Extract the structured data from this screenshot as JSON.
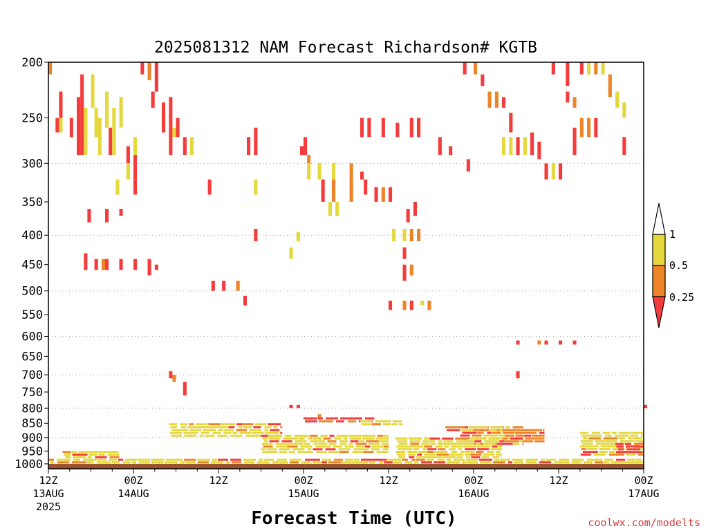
{
  "chart_data": {
    "type": "heatmap",
    "title": "2025081312 NAM Forecast Richardson# KGTB",
    "xlabel": "Forecast Time (UTC)",
    "ylabel": "",
    "credit": "coolwx.com/modelts",
    "y_scale": "log-pressure",
    "y_unit": "hPa",
    "ylim": [
      1020,
      200
    ],
    "y_ticks": [
      200,
      250,
      300,
      350,
      400,
      450,
      500,
      550,
      600,
      650,
      700,
      750,
      800,
      850,
      900,
      950,
      1000
    ],
    "y_gridlines": [
      300,
      400,
      500,
      600,
      700,
      800,
      900,
      1000
    ],
    "x_range_hours": [
      0,
      84
    ],
    "x_ticks": [
      {
        "hour": 0,
        "label": "12Z",
        "date": "13AUG",
        "year": "2025"
      },
      {
        "hour": 12,
        "label": "00Z",
        "date": "14AUG",
        "year": ""
      },
      {
        "hour": 24,
        "label": "12Z",
        "date": "",
        "year": ""
      },
      {
        "hour": 36,
        "label": "00Z",
        "date": "15AUG",
        "year": ""
      },
      {
        "hour": 48,
        "label": "12Z",
        "date": "",
        "year": ""
      },
      {
        "hour": 60,
        "label": "00Z",
        "date": "16AUG",
        "year": ""
      },
      {
        "hour": 72,
        "label": "12Z",
        "date": "",
        "year": ""
      },
      {
        "hour": 84,
        "label": "00Z",
        "date": "17AUG",
        "year": ""
      }
    ],
    "legend": {
      "placement": "right",
      "labels": [
        "1",
        "0.5",
        "0.25"
      ],
      "bins": [
        {
          "range": "0.5 - 1",
          "color": "#e4d83c"
        },
        {
          "range": "0.25 - 0.5",
          "color": "#ee8428"
        },
        {
          "range": "< 0.25",
          "color": "#f43c3c"
        }
      ],
      "above_color": "#ffffff"
    },
    "ground": {
      "from_p": 1000,
      "color": "#9c522c"
    },
    "cells": [
      [
        0,
        200,
        210,
        2
      ],
      [
        1.5,
        225,
        265,
        1
      ],
      [
        1,
        250,
        265,
        1
      ],
      [
        1.5,
        250,
        265,
        3
      ],
      [
        3,
        250,
        270,
        1
      ],
      [
        4.5,
        210,
        290,
        1
      ],
      [
        4,
        230,
        290,
        1
      ],
      [
        5,
        240,
        270,
        3
      ],
      [
        6,
        210,
        240,
        3
      ],
      [
        5,
        270,
        290,
        3
      ],
      [
        6.5,
        240,
        270,
        3
      ],
      [
        7,
        250,
        290,
        3
      ],
      [
        8,
        225,
        260,
        3
      ],
      [
        8.5,
        260,
        290,
        1
      ],
      [
        9,
        240,
        270,
        3
      ],
      [
        9,
        260,
        290,
        3
      ],
      [
        10,
        230,
        260,
        3
      ],
      [
        11,
        280,
        300,
        1
      ],
      [
        11,
        300,
        320,
        3
      ],
      [
        12,
        280,
        320,
        1
      ],
      [
        12,
        270,
        290,
        3
      ],
      [
        13,
        200,
        210,
        1
      ],
      [
        14,
        200,
        215,
        2
      ],
      [
        15,
        200,
        225,
        1
      ],
      [
        14.5,
        225,
        240,
        1
      ],
      [
        16,
        235,
        265,
        1
      ],
      [
        17,
        230,
        270,
        1
      ],
      [
        17.5,
        260,
        270,
        3
      ],
      [
        18,
        250,
        270,
        1
      ],
      [
        17,
        270,
        290,
        1
      ],
      [
        19,
        270,
        290,
        1
      ],
      [
        20,
        270,
        290,
        3
      ],
      [
        9.5,
        320,
        340,
        3
      ],
      [
        12,
        320,
        340,
        1
      ],
      [
        10,
        360,
        370,
        1
      ],
      [
        8,
        360,
        380,
        1
      ],
      [
        5.5,
        360,
        380,
        1
      ],
      [
        5,
        430,
        460,
        1
      ],
      [
        6.5,
        440,
        460,
        1
      ],
      [
        7.5,
        440,
        460,
        2
      ],
      [
        8,
        440,
        460,
        1
      ],
      [
        10,
        440,
        460,
        1
      ],
      [
        12,
        440,
        460,
        1
      ],
      [
        14,
        440,
        470,
        1
      ],
      [
        15,
        450,
        460,
        1
      ],
      [
        22.5,
        320,
        340,
        1
      ],
      [
        23,
        480,
        500,
        1
      ],
      [
        24.5,
        480,
        500,
        1
      ],
      [
        26.5,
        480,
        500,
        2
      ],
      [
        27.5,
        510,
        530,
        1
      ],
      [
        28,
        270,
        290,
        1
      ],
      [
        29,
        260,
        290,
        1
      ],
      [
        29,
        320,
        340,
        3
      ],
      [
        29,
        390,
        410,
        1
      ],
      [
        34,
        420,
        440,
        3
      ],
      [
        35,
        395,
        410,
        3
      ],
      [
        35.5,
        280,
        290,
        1
      ],
      [
        36,
        270,
        290,
        1
      ],
      [
        36.5,
        290,
        300,
        2
      ],
      [
        36.5,
        300,
        320,
        3
      ],
      [
        38,
        300,
        320,
        3
      ],
      [
        40,
        300,
        320,
        3
      ],
      [
        42.5,
        300,
        320,
        2
      ],
      [
        44,
        310,
        320,
        1
      ],
      [
        44.5,
        320,
        340,
        1
      ],
      [
        38.5,
        320,
        350,
        1
      ],
      [
        40,
        320,
        350,
        2
      ],
      [
        42.5,
        320,
        350,
        2
      ],
      [
        39.5,
        350,
        370,
        3
      ],
      [
        40.5,
        350,
        370,
        3
      ],
      [
        46,
        330,
        350,
        1
      ],
      [
        47,
        330,
        350,
        2
      ],
      [
        48,
        330,
        350,
        1
      ],
      [
        44,
        250,
        270,
        1
      ],
      [
        45,
        250,
        270,
        1
      ],
      [
        47,
        250,
        270,
        1
      ],
      [
        49,
        255,
        270,
        1
      ],
      [
        51,
        250,
        270,
        1
      ],
      [
        52,
        250,
        270,
        1
      ],
      [
        55,
        270,
        290,
        1
      ],
      [
        56.5,
        280,
        290,
        1
      ],
      [
        59,
        295,
        310,
        1
      ],
      [
        48.5,
        390,
        410,
        3
      ],
      [
        50,
        390,
        410,
        3
      ],
      [
        51,
        390,
        410,
        2
      ],
      [
        52,
        390,
        410,
        2
      ],
      [
        50.5,
        360,
        380,
        1
      ],
      [
        51.5,
        350,
        370,
        1
      ],
      [
        50,
        420,
        440,
        1
      ],
      [
        50,
        450,
        480,
        1
      ],
      [
        51,
        450,
        470,
        2
      ],
      [
        48,
        520,
        540,
        1
      ],
      [
        50,
        520,
        540,
        2
      ],
      [
        51,
        520,
        540,
        1
      ],
      [
        52.5,
        520,
        530,
        3
      ],
      [
        53.5,
        520,
        540,
        2
      ],
      [
        58.5,
        200,
        210,
        1
      ],
      [
        60,
        200,
        210,
        2
      ],
      [
        61,
        210,
        220,
        1
      ],
      [
        62,
        225,
        240,
        2
      ],
      [
        63,
        225,
        240,
        2
      ],
      [
        64,
        230,
        240,
        1
      ],
      [
        65,
        245,
        265,
        1
      ],
      [
        64,
        270,
        290,
        3
      ],
      [
        65,
        270,
        290,
        3
      ],
      [
        66,
        270,
        290,
        1
      ],
      [
        67,
        270,
        290,
        3
      ],
      [
        68,
        265,
        290,
        1
      ],
      [
        69,
        275,
        295,
        1
      ],
      [
        70,
        300,
        320,
        1
      ],
      [
        71,
        300,
        320,
        3
      ],
      [
        72,
        300,
        320,
        1
      ],
      [
        71,
        200,
        210,
        1
      ],
      [
        73,
        200,
        220,
        1
      ],
      [
        73,
        225,
        235,
        1
      ],
      [
        74,
        230,
        240,
        2
      ],
      [
        74,
        260,
        290,
        1
      ],
      [
        75,
        250,
        270,
        2
      ],
      [
        76,
        250,
        270,
        2
      ],
      [
        77,
        250,
        270,
        1
      ],
      [
        75,
        200,
        210,
        1
      ],
      [
        76,
        200,
        210,
        3
      ],
      [
        77,
        200,
        210,
        2
      ],
      [
        78,
        200,
        210,
        3
      ],
      [
        79,
        210,
        230,
        2
      ],
      [
        80,
        225,
        240,
        3
      ],
      [
        81,
        235,
        250,
        3
      ],
      [
        81,
        270,
        290,
        1
      ],
      [
        66,
        610,
        620,
        1
      ],
      [
        69,
        610,
        620,
        2
      ],
      [
        70,
        610,
        620,
        1
      ],
      [
        72,
        610,
        620,
        1
      ],
      [
        74,
        610,
        620,
        1
      ],
      [
        66,
        690,
        710,
        1
      ],
      [
        17,
        690,
        710,
        1
      ],
      [
        17.5,
        700,
        720,
        2
      ],
      [
        19,
        720,
        760,
        1
      ],
      [
        84,
        790,
        800,
        1
      ],
      [
        34,
        790,
        800,
        1
      ],
      [
        35,
        790,
        800,
        1
      ],
      [
        38,
        820,
        830,
        2
      ]
    ],
    "low_layers": [
      {
        "x0": 0,
        "x1": 84,
        "p_top": 980,
        "p_bot": 1000,
        "cls": 3
      },
      {
        "x0": 2,
        "x1": 10,
        "p_top": 950,
        "p_bot": 980,
        "cls": 3
      },
      {
        "x0": 17,
        "x1": 33,
        "p_top": 850,
        "p_bot": 900,
        "cls": 3
      },
      {
        "x0": 30,
        "x1": 48,
        "p_top": 890,
        "p_bot": 960,
        "cls": 3
      },
      {
        "x0": 36,
        "x1": 46,
        "p_top": 830,
        "p_bot": 850,
        "cls": 1
      },
      {
        "x0": 44,
        "x1": 50,
        "p_top": 840,
        "p_bot": 860,
        "cls": 3
      },
      {
        "x0": 49,
        "x1": 64,
        "p_top": 900,
        "p_bot": 980,
        "cls": 3
      },
      {
        "x0": 56,
        "x1": 66,
        "p_top": 860,
        "p_bot": 880,
        "cls": 1
      },
      {
        "x0": 58,
        "x1": 67,
        "p_top": 860,
        "p_bot": 930,
        "cls": 3
      },
      {
        "x0": 64,
        "x1": 70,
        "p_top": 870,
        "p_bot": 920,
        "cls": 2
      },
      {
        "x0": 75,
        "x1": 84,
        "p_top": 880,
        "p_bot": 970,
        "cls": 3
      },
      {
        "x0": 80,
        "x1": 84,
        "p_top": 920,
        "p_bot": 960,
        "cls": 1
      }
    ]
  }
}
